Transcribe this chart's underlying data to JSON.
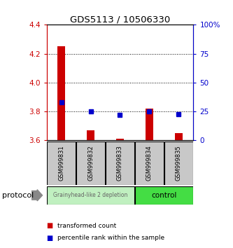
{
  "title": "GDS5113 / 10506330",
  "samples": [
    "GSM999831",
    "GSM999832",
    "GSM999833",
    "GSM999834",
    "GSM999835"
  ],
  "ylim_left": [
    3.6,
    4.4
  ],
  "ylim_right": [
    0,
    100
  ],
  "yticks_left": [
    3.6,
    3.8,
    4.0,
    4.2,
    4.4
  ],
  "yticks_right": [
    0,
    25,
    50,
    75,
    100
  ],
  "ytick_labels_right": [
    "0",
    "25",
    "50",
    "75",
    "100%"
  ],
  "bar_bottom": 3.6,
  "red_tops": [
    4.25,
    3.67,
    3.61,
    3.82,
    3.65
  ],
  "blue_vals": [
    3.862,
    3.797,
    3.776,
    3.8,
    3.779
  ],
  "bar_color": "#CC0000",
  "blue_color": "#0000CC",
  "bg_color": "#ffffff",
  "sample_box_color": "#C8C8C8",
  "group1_label": "Grainyhead-like 2 depletion",
  "group1_color": "#C0F0C0",
  "group2_label": "control",
  "group2_color": "#44DD44",
  "protocol_label": "protocol",
  "legend_red": "transformed count",
  "legend_blue": "percentile rank within the sample",
  "left_axis_color": "#CC0000",
  "right_axis_color": "#0000CC",
  "dotted_lines": [
    3.8,
    4.0,
    4.2
  ]
}
